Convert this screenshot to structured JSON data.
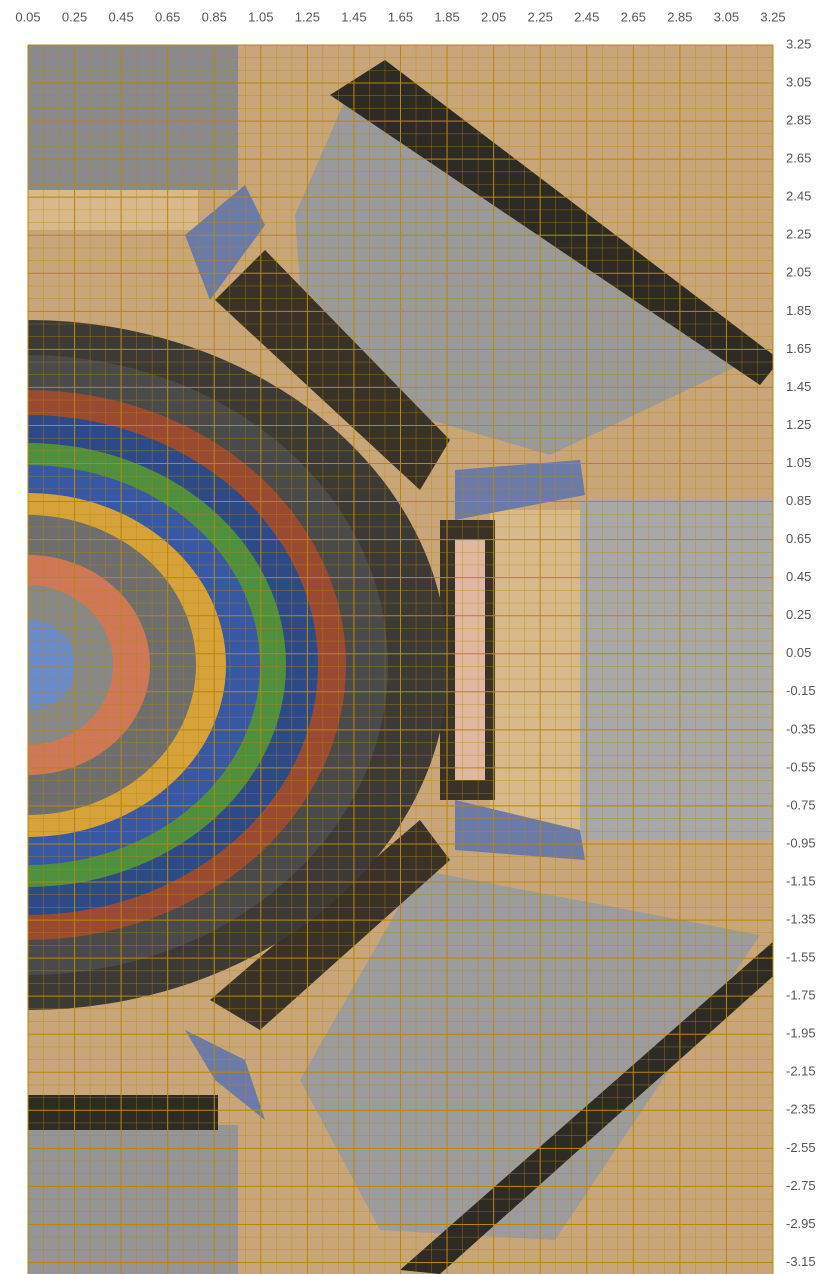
{
  "chart_data": {
    "type": "contour",
    "xlim": [
      0.05,
      3.25
    ],
    "xticks": [
      0.05,
      0.25,
      0.45,
      0.65,
      0.85,
      1.05,
      1.25,
      1.45,
      1.65,
      1.85,
      2.05,
      2.25,
      2.45,
      2.65,
      2.85,
      3.05,
      3.25
    ],
    "ylim": [
      -3.2,
      3.25
    ],
    "yticks": [
      3.25,
      3.05,
      2.85,
      2.65,
      2.45,
      2.25,
      2.05,
      1.85,
      1.65,
      1.45,
      1.25,
      1.05,
      0.85,
      0.65,
      0.45,
      0.25,
      0.05,
      -0.15,
      -0.35,
      -0.55,
      -0.75,
      -0.95,
      -1.15,
      -1.35,
      -1.55,
      -1.75,
      -1.95,
      -2.15,
      -2.35,
      -2.55,
      -2.75,
      -2.95,
      -3.15
    ],
    "grid": true,
    "grid_color": "#b8860b"
  }
}
